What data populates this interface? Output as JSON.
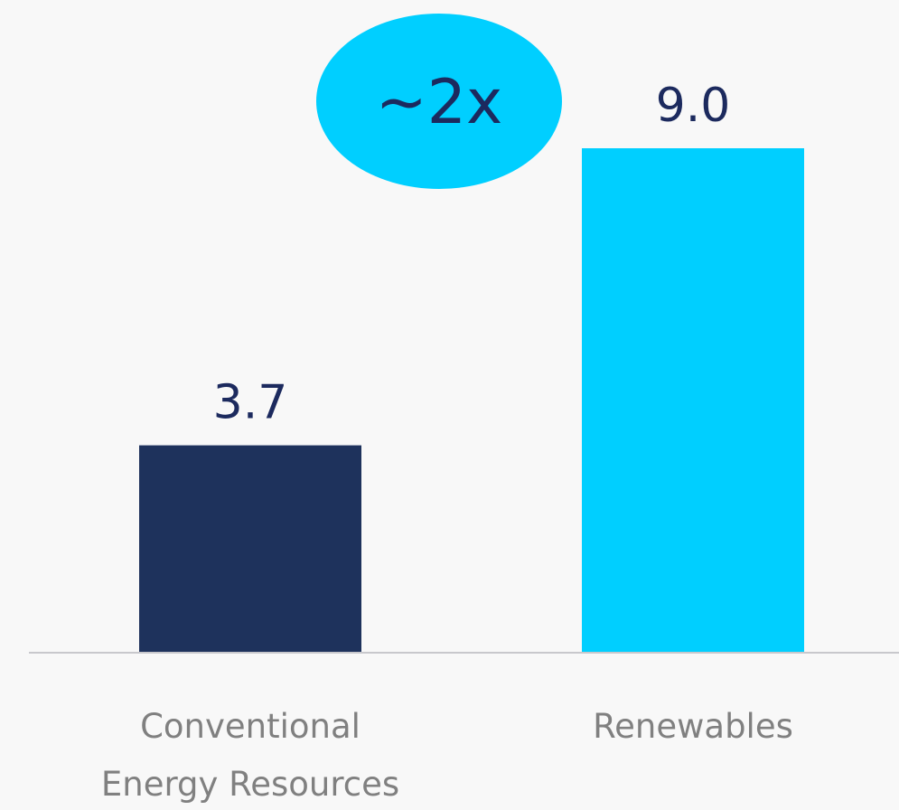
{
  "chart_data": {
    "type": "bar",
    "categories": [
      [
        "Conventional",
        "Energy Resources"
      ],
      [
        "Renewables"
      ]
    ],
    "values": [
      3.7,
      9.0
    ],
    "value_labels": [
      "3.7",
      "9.0"
    ],
    "colors": [
      "#1e325c",
      "#00cfff"
    ],
    "ylim": [
      0,
      9.5
    ],
    "grid": false,
    "title": "",
    "xlabel": "",
    "ylabel": "",
    "annotation": {
      "text": "~2x",
      "color": "#00cfff"
    }
  }
}
